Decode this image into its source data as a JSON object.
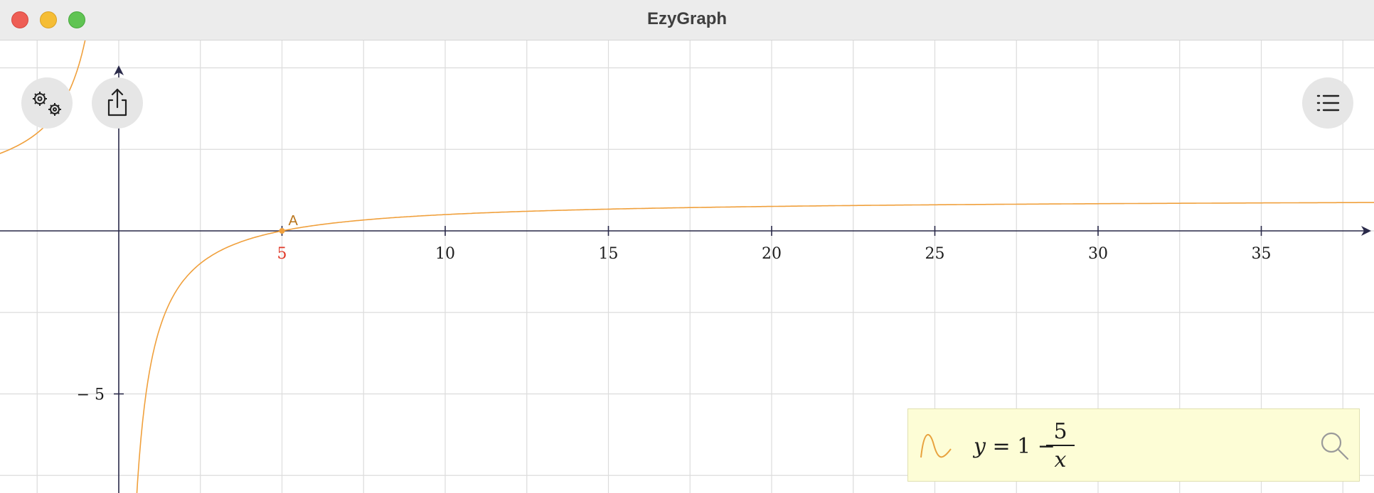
{
  "window": {
    "title": "EzyGraph"
  },
  "graph": {
    "x_ticks": [
      "5",
      "10",
      "15",
      "20",
      "25",
      "30",
      "35"
    ],
    "y_ticks": [
      "− 5"
    ],
    "point": {
      "label": "A",
      "x": 5,
      "y": 0
    },
    "intercept_label": "5",
    "curve_color": "#f0a03c",
    "axis_color": "#2a2a4a",
    "grid_color": "#dcdcdc"
  },
  "buttons": {
    "settings": "gear-icon",
    "share": "share-icon",
    "list": "list-icon"
  },
  "equation": {
    "lhs_var": "y",
    "equals_and_one": " = 1 −",
    "numerator": "5",
    "denominator": "x",
    "search_icon": "magnifier-icon"
  },
  "chart_data": {
    "type": "line",
    "function": "y = 1 - 5/x",
    "xlim": [
      -3.6,
      38.6
    ],
    "ylim": [
      -8,
      5.9
    ],
    "x_ticks": [
      5,
      10,
      15,
      20,
      25,
      30,
      35
    ],
    "y_ticks": [
      -5
    ],
    "grid": true,
    "series": [
      {
        "color": "#f0a03c"
      }
    ],
    "points": [
      {
        "label": "A",
        "x": 5,
        "y": 0
      }
    ]
  }
}
